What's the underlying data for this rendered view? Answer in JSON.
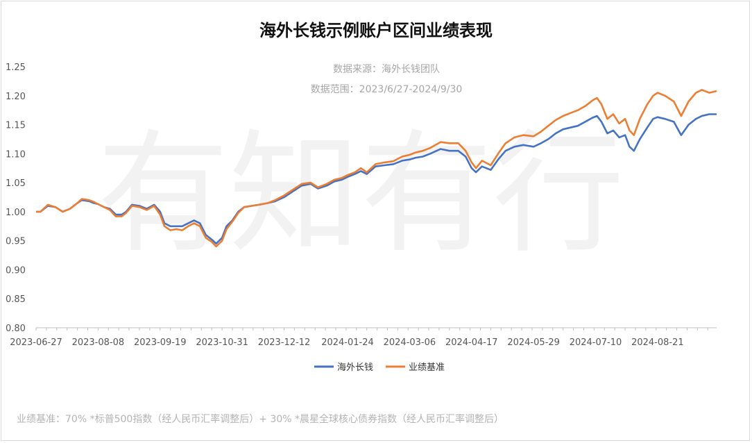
{
  "chart_data": {
    "type": "line",
    "title": "海外长钱示例账户区间业绩表现",
    "subtitle_lines": [
      "数据来源：海外长钱团队",
      "数据范围：2023/6/27-2024/9/30"
    ],
    "watermark": "有知有行",
    "footnote": "业绩基准：70% *标普500指数（经人民币汇率调整后）+ 30% *晨星全球核心债券指数（经人民币汇率调整后）",
    "xlim": [
      "2023-06-27",
      "2024-09-30"
    ],
    "x_tick_labels": [
      "2023-06-27",
      "2023-08-08",
      "2023-09-19",
      "2023-10-31",
      "2023-12-12",
      "2024-01-24",
      "2024-03-06",
      "2024-04-17",
      "2024-05-29",
      "2024-07-10",
      "2024-08-21"
    ],
    "ylim": [
      0.8,
      1.25
    ],
    "y_tick_labels": [
      "1.25",
      "1.20",
      "1.15",
      "1.10",
      "1.05",
      "1.00",
      "0.95",
      "0.90",
      "0.85",
      "0.80"
    ],
    "grid": false,
    "legend_position": "bottom-center",
    "series": [
      {
        "name": "海外长钱",
        "color": "#4472c4",
        "points": [
          [
            "2023-06-27",
            1.0
          ],
          [
            "2023-06-30",
            1.0
          ],
          [
            "2023-07-05",
            1.01
          ],
          [
            "2023-07-10",
            1.008
          ],
          [
            "2023-07-15",
            1.0
          ],
          [
            "2023-07-20",
            1.005
          ],
          [
            "2023-07-25",
            1.015
          ],
          [
            "2023-07-28",
            1.02
          ],
          [
            "2023-08-02",
            1.018
          ],
          [
            "2023-08-05",
            1.015
          ],
          [
            "2023-08-08",
            1.013
          ],
          [
            "2023-08-12",
            1.008
          ],
          [
            "2023-08-16",
            1.005
          ],
          [
            "2023-08-20",
            0.995
          ],
          [
            "2023-08-24",
            0.995
          ],
          [
            "2023-08-27",
            1.0
          ],
          [
            "2023-08-31",
            1.012
          ],
          [
            "2023-09-05",
            1.01
          ],
          [
            "2023-09-10",
            1.005
          ],
          [
            "2023-09-15",
            1.012
          ],
          [
            "2023-09-19",
            1.0
          ],
          [
            "2023-09-22",
            0.98
          ],
          [
            "2023-09-26",
            0.975
          ],
          [
            "2023-09-30",
            0.975
          ],
          [
            "2023-10-04",
            0.975
          ],
          [
            "2023-10-08",
            0.98
          ],
          [
            "2023-10-12",
            0.985
          ],
          [
            "2023-10-16",
            0.98
          ],
          [
            "2023-10-20",
            0.96
          ],
          [
            "2023-10-24",
            0.952
          ],
          [
            "2023-10-27",
            0.945
          ],
          [
            "2023-10-31",
            0.955
          ],
          [
            "2023-11-03",
            0.975
          ],
          [
            "2023-11-07",
            0.985
          ],
          [
            "2023-11-11",
            1.0
          ],
          [
            "2023-11-15",
            1.008
          ],
          [
            "2023-11-20",
            1.01
          ],
          [
            "2023-11-25",
            1.012
          ],
          [
            "2023-12-01",
            1.015
          ],
          [
            "2023-12-06",
            1.018
          ],
          [
            "2023-12-12",
            1.025
          ],
          [
            "2023-12-18",
            1.035
          ],
          [
            "2023-12-24",
            1.045
          ],
          [
            "2023-12-30",
            1.048
          ],
          [
            "2024-01-04",
            1.04
          ],
          [
            "2024-01-10",
            1.045
          ],
          [
            "2024-01-15",
            1.052
          ],
          [
            "2024-01-20",
            1.055
          ],
          [
            "2024-01-24",
            1.06
          ],
          [
            "2024-01-29",
            1.065
          ],
          [
            "2024-02-02",
            1.07
          ],
          [
            "2024-02-06",
            1.065
          ],
          [
            "2024-02-12",
            1.078
          ],
          [
            "2024-02-18",
            1.08
          ],
          [
            "2024-02-24",
            1.082
          ],
          [
            "2024-03-01",
            1.088
          ],
          [
            "2024-03-06",
            1.09
          ],
          [
            "2024-03-10",
            1.093
          ],
          [
            "2024-03-15",
            1.095
          ],
          [
            "2024-03-20",
            1.1
          ],
          [
            "2024-03-27",
            1.108
          ],
          [
            "2024-04-02",
            1.105
          ],
          [
            "2024-04-08",
            1.105
          ],
          [
            "2024-04-13",
            1.095
          ],
          [
            "2024-04-17",
            1.075
          ],
          [
            "2024-04-20",
            1.068
          ],
          [
            "2024-04-24",
            1.078
          ],
          [
            "2024-04-30",
            1.072
          ],
          [
            "2024-05-05",
            1.09
          ],
          [
            "2024-05-10",
            1.105
          ],
          [
            "2024-05-16",
            1.112
          ],
          [
            "2024-05-22",
            1.115
          ],
          [
            "2024-05-29",
            1.112
          ],
          [
            "2024-06-03",
            1.118
          ],
          [
            "2024-06-08",
            1.125
          ],
          [
            "2024-06-13",
            1.135
          ],
          [
            "2024-06-18",
            1.142
          ],
          [
            "2024-06-23",
            1.145
          ],
          [
            "2024-06-28",
            1.148
          ],
          [
            "2024-07-03",
            1.155
          ],
          [
            "2024-07-08",
            1.162
          ],
          [
            "2024-07-11",
            1.165
          ],
          [
            "2024-07-14",
            1.155
          ],
          [
            "2024-07-18",
            1.135
          ],
          [
            "2024-07-22",
            1.14
          ],
          [
            "2024-07-26",
            1.128
          ],
          [
            "2024-07-30",
            1.132
          ],
          [
            "2024-08-02",
            1.112
          ],
          [
            "2024-08-05",
            1.105
          ],
          [
            "2024-08-09",
            1.125
          ],
          [
            "2024-08-14",
            1.145
          ],
          [
            "2024-08-18",
            1.16
          ],
          [
            "2024-08-21",
            1.163
          ],
          [
            "2024-08-26",
            1.16
          ],
          [
            "2024-09-01",
            1.155
          ],
          [
            "2024-09-06",
            1.132
          ],
          [
            "2024-09-11",
            1.15
          ],
          [
            "2024-09-16",
            1.16
          ],
          [
            "2024-09-20",
            1.165
          ],
          [
            "2024-09-25",
            1.168
          ],
          [
            "2024-09-30",
            1.168
          ]
        ]
      },
      {
        "name": "业绩基准",
        "color": "#ed7d31",
        "points": [
          [
            "2023-06-27",
            1.0
          ],
          [
            "2023-06-30",
            1.0
          ],
          [
            "2023-07-05",
            1.012
          ],
          [
            "2023-07-10",
            1.008
          ],
          [
            "2023-07-15",
            1.0
          ],
          [
            "2023-07-20",
            1.005
          ],
          [
            "2023-07-25",
            1.015
          ],
          [
            "2023-07-28",
            1.022
          ],
          [
            "2023-08-02",
            1.02
          ],
          [
            "2023-08-05",
            1.017
          ],
          [
            "2023-08-08",
            1.013
          ],
          [
            "2023-08-12",
            1.008
          ],
          [
            "2023-08-16",
            1.003
          ],
          [
            "2023-08-20",
            0.992
          ],
          [
            "2023-08-24",
            0.992
          ],
          [
            "2023-08-27",
            0.998
          ],
          [
            "2023-08-31",
            1.01
          ],
          [
            "2023-09-05",
            1.008
          ],
          [
            "2023-09-10",
            1.003
          ],
          [
            "2023-09-15",
            1.01
          ],
          [
            "2023-09-19",
            0.995
          ],
          [
            "2023-09-22",
            0.975
          ],
          [
            "2023-09-26",
            0.968
          ],
          [
            "2023-09-30",
            0.97
          ],
          [
            "2023-10-04",
            0.968
          ],
          [
            "2023-10-08",
            0.975
          ],
          [
            "2023-10-12",
            0.98
          ],
          [
            "2023-10-16",
            0.975
          ],
          [
            "2023-10-20",
            0.955
          ],
          [
            "2023-10-24",
            0.948
          ],
          [
            "2023-10-27",
            0.94
          ],
          [
            "2023-10-31",
            0.95
          ],
          [
            "2023-11-03",
            0.97
          ],
          [
            "2023-11-07",
            0.983
          ],
          [
            "2023-11-11",
            0.998
          ],
          [
            "2023-11-15",
            1.008
          ],
          [
            "2023-11-20",
            1.01
          ],
          [
            "2023-11-25",
            1.012
          ],
          [
            "2023-12-01",
            1.015
          ],
          [
            "2023-12-06",
            1.02
          ],
          [
            "2023-12-12",
            1.028
          ],
          [
            "2023-12-18",
            1.038
          ],
          [
            "2023-12-24",
            1.048
          ],
          [
            "2023-12-30",
            1.05
          ],
          [
            "2024-01-04",
            1.042
          ],
          [
            "2024-01-10",
            1.048
          ],
          [
            "2024-01-15",
            1.055
          ],
          [
            "2024-01-20",
            1.058
          ],
          [
            "2024-01-24",
            1.063
          ],
          [
            "2024-01-29",
            1.068
          ],
          [
            "2024-02-02",
            1.075
          ],
          [
            "2024-02-06",
            1.068
          ],
          [
            "2024-02-12",
            1.082
          ],
          [
            "2024-02-18",
            1.085
          ],
          [
            "2024-02-24",
            1.087
          ],
          [
            "2024-03-01",
            1.095
          ],
          [
            "2024-03-06",
            1.098
          ],
          [
            "2024-03-10",
            1.102
          ],
          [
            "2024-03-15",
            1.105
          ],
          [
            "2024-03-20",
            1.11
          ],
          [
            "2024-03-27",
            1.12
          ],
          [
            "2024-04-02",
            1.118
          ],
          [
            "2024-04-08",
            1.118
          ],
          [
            "2024-04-13",
            1.105
          ],
          [
            "2024-04-17",
            1.085
          ],
          [
            "2024-04-20",
            1.075
          ],
          [
            "2024-04-24",
            1.088
          ],
          [
            "2024-04-30",
            1.08
          ],
          [
            "2024-05-05",
            1.1
          ],
          [
            "2024-05-10",
            1.118
          ],
          [
            "2024-05-16",
            1.128
          ],
          [
            "2024-05-22",
            1.132
          ],
          [
            "2024-05-29",
            1.13
          ],
          [
            "2024-06-03",
            1.138
          ],
          [
            "2024-06-08",
            1.148
          ],
          [
            "2024-06-13",
            1.158
          ],
          [
            "2024-06-18",
            1.165
          ],
          [
            "2024-06-23",
            1.17
          ],
          [
            "2024-06-28",
            1.175
          ],
          [
            "2024-07-03",
            1.182
          ],
          [
            "2024-07-08",
            1.192
          ],
          [
            "2024-07-11",
            1.196
          ],
          [
            "2024-07-14",
            1.185
          ],
          [
            "2024-07-18",
            1.16
          ],
          [
            "2024-07-22",
            1.168
          ],
          [
            "2024-07-26",
            1.152
          ],
          [
            "2024-07-30",
            1.16
          ],
          [
            "2024-08-02",
            1.14
          ],
          [
            "2024-08-05",
            1.132
          ],
          [
            "2024-08-09",
            1.16
          ],
          [
            "2024-08-14",
            1.185
          ],
          [
            "2024-08-18",
            1.2
          ],
          [
            "2024-08-21",
            1.205
          ],
          [
            "2024-08-26",
            1.2
          ],
          [
            "2024-09-01",
            1.19
          ],
          [
            "2024-09-06",
            1.165
          ],
          [
            "2024-09-11",
            1.19
          ],
          [
            "2024-09-16",
            1.205
          ],
          [
            "2024-09-20",
            1.21
          ],
          [
            "2024-09-25",
            1.205
          ],
          [
            "2024-09-30",
            1.208
          ]
        ]
      }
    ]
  }
}
